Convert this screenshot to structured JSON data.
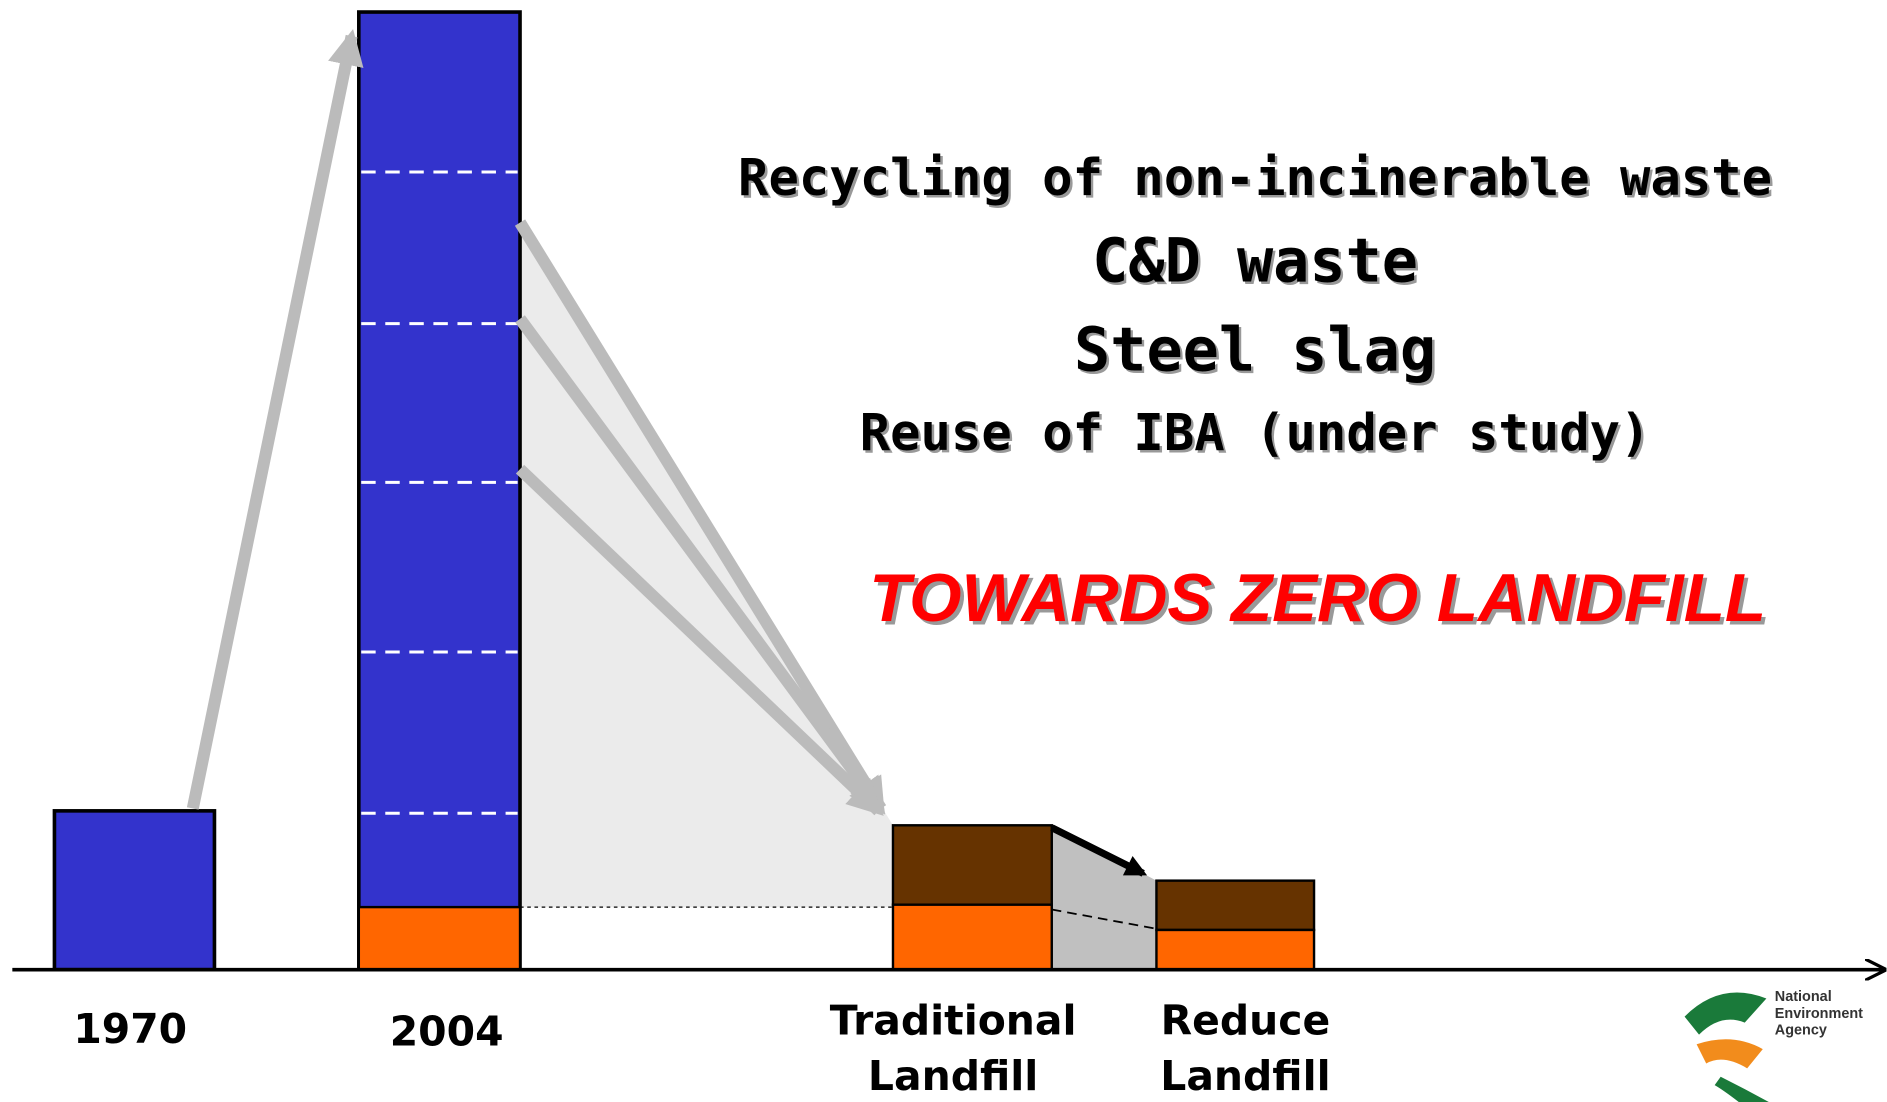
{
  "headlines": [
    "Recycling of non-incinerable waste",
    "C&D waste",
    "Steel slag",
    "Reuse of IBA (under study)"
  ],
  "slogan": "TOWARDS ZERO LANDFILL",
  "labels": [
    {
      "lines": [
        "1970"
      ]
    },
    {
      "lines": [
        "2004"
      ]
    },
    {
      "lines": [
        "Traditional",
        "Landfill"
      ]
    },
    {
      "lines": [
        "Reduce",
        "Landfill"
      ]
    }
  ],
  "logo": [
    "National",
    "Environment",
    "Agency"
  ]
}
